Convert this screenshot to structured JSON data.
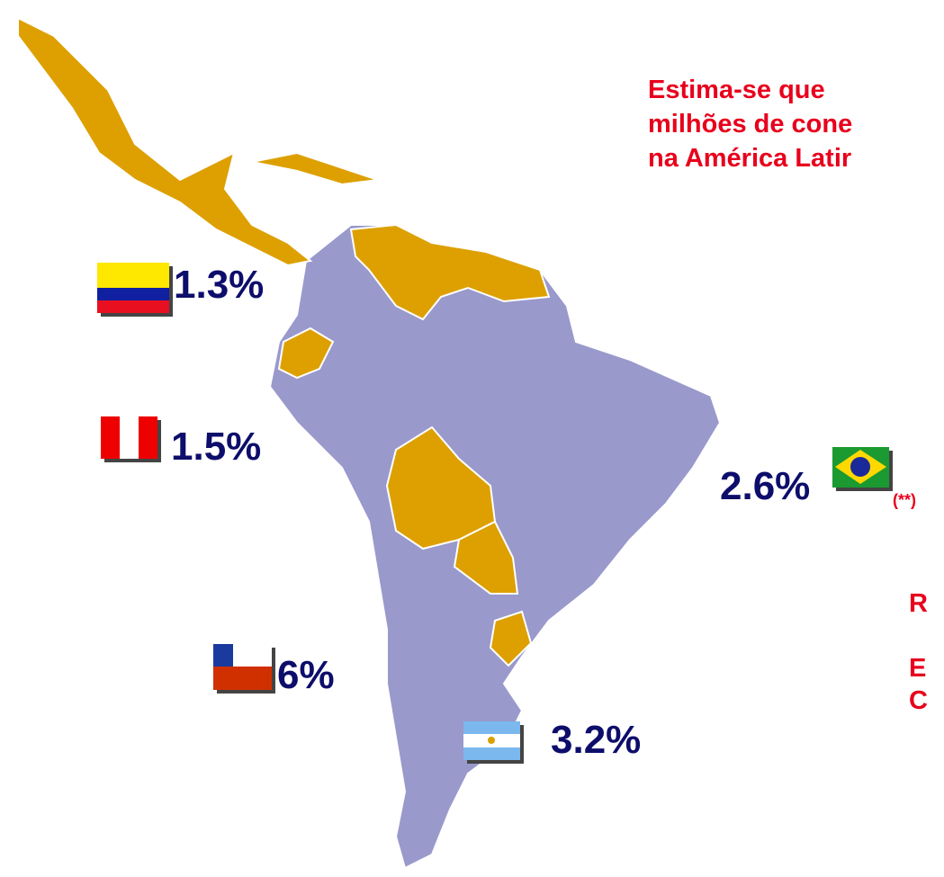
{
  "intro": {
    "lines": [
      "Estima-se   que",
      "milhões de cone",
      "na América Latir"
    ]
  },
  "countries": [
    {
      "label": "1.3%"
    },
    {
      "label": "1.5%"
    },
    {
      "label": "2.6%",
      "note": "(**)"
    },
    {
      "label": "6%"
    },
    {
      "label": "3.2%"
    }
  ],
  "side_letters": [
    "R",
    "E",
    "C"
  ]
}
